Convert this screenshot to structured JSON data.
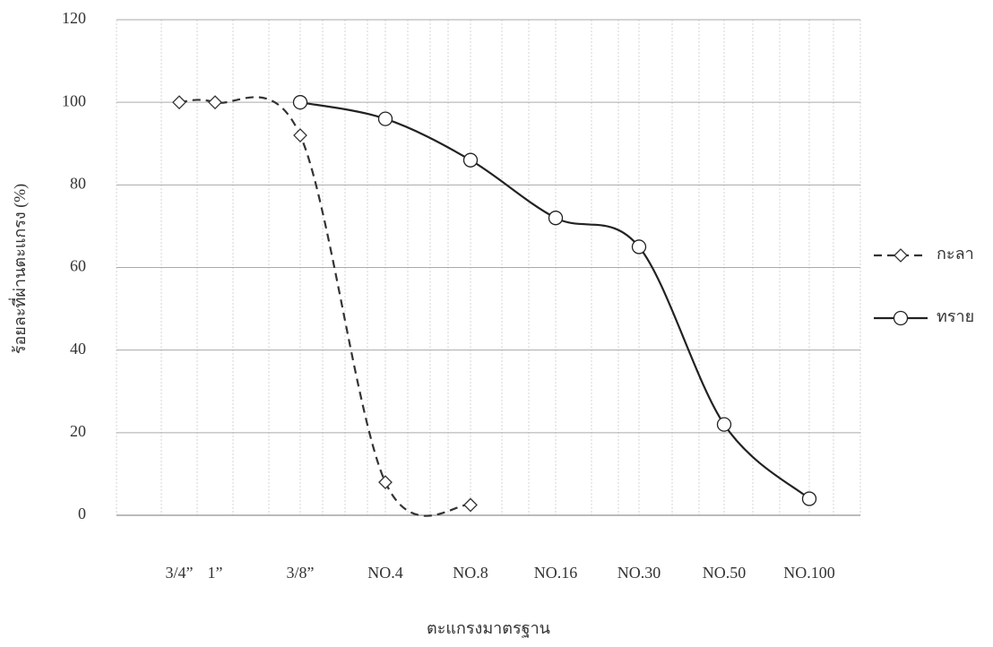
{
  "chart_data": {
    "type": "line",
    "x_label": "ตะแกรงมาตรฐาน",
    "y_label": "ร้อยละที่ผ่านตะแกรง (%)",
    "categories": [
      "3/4”",
      "1”",
      "3/8”",
      "NO.4",
      "NO.8",
      "NO.16",
      "NO.30",
      "NO.50",
      "NO.100"
    ],
    "series": [
      {
        "name": "กะลา",
        "color": "#333333",
        "dash": true,
        "marker": "diamond",
        "values": [
          100,
          100,
          92,
          8,
          2.5,
          null,
          null,
          null,
          null
        ]
      },
      {
        "name": "ทราย",
        "color": "#222222",
        "dash": false,
        "marker": "circle",
        "values": [
          null,
          null,
          100,
          96,
          86,
          72,
          65,
          22,
          4
        ]
      }
    ],
    "ylim": [
      0,
      120
    ],
    "yticks": [
      0,
      20,
      40,
      60,
      80,
      100,
      120
    ],
    "grid": true
  }
}
